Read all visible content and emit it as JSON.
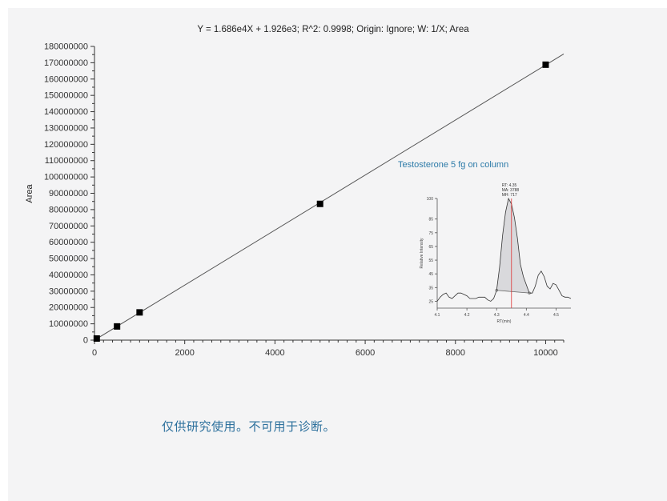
{
  "chart_data": {
    "type": "scatter",
    "title": "Y = 1.686e4X + 1.926e3; R^2: 0.9998; Origin: Ignore; W: 1/X; Area",
    "xlabel": "",
    "ylabel": "Area",
    "xlim": [
      0,
      10400
    ],
    "ylim": [
      0,
      180000000
    ],
    "x_ticks": [
      0,
      2000,
      4000,
      6000,
      8000,
      10000
    ],
    "y_ticks": [
      0,
      10000000,
      20000000,
      30000000,
      40000000,
      50000000,
      60000000,
      70000000,
      80000000,
      90000000,
      100000000,
      110000000,
      120000000,
      130000000,
      140000000,
      150000000,
      160000000,
      170000000,
      180000000
    ],
    "grid": false,
    "series": [
      {
        "points": [
          [
            50,
            1000000
          ],
          [
            500,
            8400000
          ],
          [
            1000,
            17000000
          ],
          [
            5000,
            83500000
          ],
          [
            10000,
            168800000
          ]
        ]
      }
    ],
    "fit_line": {
      "slope": 16860,
      "intercept": 1926,
      "x_range": [
        0,
        10400
      ]
    },
    "inset": {
      "title": "Testosterone 5 fg on column",
      "type": "line",
      "xlabel": "RT(min)",
      "ylabel": "Relative Intensity",
      "xlim": [
        4.1,
        4.55
      ],
      "ylim": [
        20,
        100
      ],
      "x_ticks": [
        "4.1",
        "4.2",
        "4.3",
        "4.4",
        "4.5"
      ],
      "y_ticks": [
        "25",
        "35",
        "45",
        "55",
        "65",
        "75",
        "85",
        "100"
      ],
      "annotation": [
        "RT: 4.35",
        "MA: 3788",
        "MH: 717"
      ],
      "peak_rt": 4.35,
      "trace": [
        [
          4.1,
          25
        ],
        [
          4.11,
          28
        ],
        [
          4.12,
          30
        ],
        [
          4.13,
          31
        ],
        [
          4.14,
          28
        ],
        [
          4.15,
          27
        ],
        [
          4.16,
          29
        ],
        [
          4.17,
          31
        ],
        [
          4.18,
          31
        ],
        [
          4.19,
          30
        ],
        [
          4.2,
          29
        ],
        [
          4.21,
          27
        ],
        [
          4.22,
          27
        ],
        [
          4.23,
          27
        ],
        [
          4.24,
          28
        ],
        [
          4.25,
          28
        ],
        [
          4.26,
          28
        ],
        [
          4.27,
          26
        ],
        [
          4.28,
          25
        ],
        [
          4.29,
          27
        ],
        [
          4.3,
          33
        ],
        [
          4.31,
          50
        ],
        [
          4.32,
          73
        ],
        [
          4.33,
          90
        ],
        [
          4.34,
          100
        ],
        [
          4.35,
          96
        ],
        [
          4.36,
          86
        ],
        [
          4.37,
          71
        ],
        [
          4.38,
          52
        ],
        [
          4.39,
          43
        ],
        [
          4.4,
          37
        ],
        [
          4.41,
          31
        ],
        [
          4.42,
          31
        ],
        [
          4.43,
          36
        ],
        [
          4.44,
          44
        ],
        [
          4.45,
          47
        ],
        [
          4.46,
          43
        ],
        [
          4.47,
          36
        ],
        [
          4.48,
          34
        ],
        [
          4.49,
          38
        ],
        [
          4.5,
          37
        ],
        [
          4.51,
          33
        ],
        [
          4.52,
          29
        ],
        [
          4.53,
          28
        ],
        [
          4.54,
          28
        ],
        [
          4.55,
          27
        ]
      ],
      "peak_range": [
        4.3,
        4.41
      ]
    }
  },
  "disclaimer": "仅供研究使用。不可用于诊断。"
}
